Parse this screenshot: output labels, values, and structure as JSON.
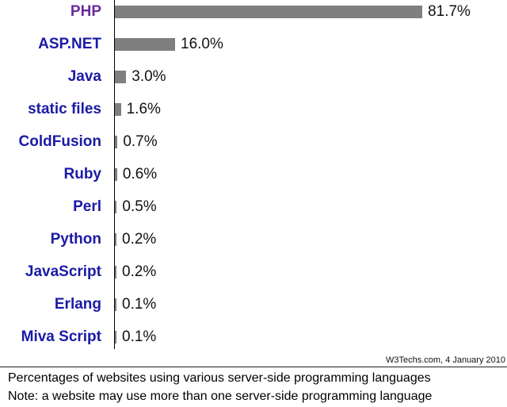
{
  "chart_data": {
    "type": "bar",
    "orientation": "horizontal",
    "categories": [
      "PHP",
      "ASP.NET",
      "Java",
      "static files",
      "ColdFusion",
      "Ruby",
      "Perl",
      "Python",
      "JavaScript",
      "Erlang",
      "Miva Script"
    ],
    "values": [
      81.7,
      16.0,
      3.0,
      1.6,
      0.7,
      0.6,
      0.5,
      0.2,
      0.2,
      0.1,
      0.1
    ],
    "value_labels": [
      "81.7%",
      "16.0%",
      "3.0%",
      "1.6%",
      "0.7%",
      "0.6%",
      "0.5%",
      "0.2%",
      "0.2%",
      "0.1%",
      "0.1%"
    ],
    "highlight_category": "PHP",
    "xlim": [
      0,
      100
    ],
    "grid": false,
    "source": "W3Techs.com, 4 January 2010"
  },
  "caption": {
    "line1": "Percentages of websites using various server-side programming languages",
    "line2": "Note: a website may use more than one server-side programming language"
  },
  "colors": {
    "bar": "#7f7f7f",
    "label": "#1a1aa6",
    "highlight_label": "#6b2a9e"
  }
}
